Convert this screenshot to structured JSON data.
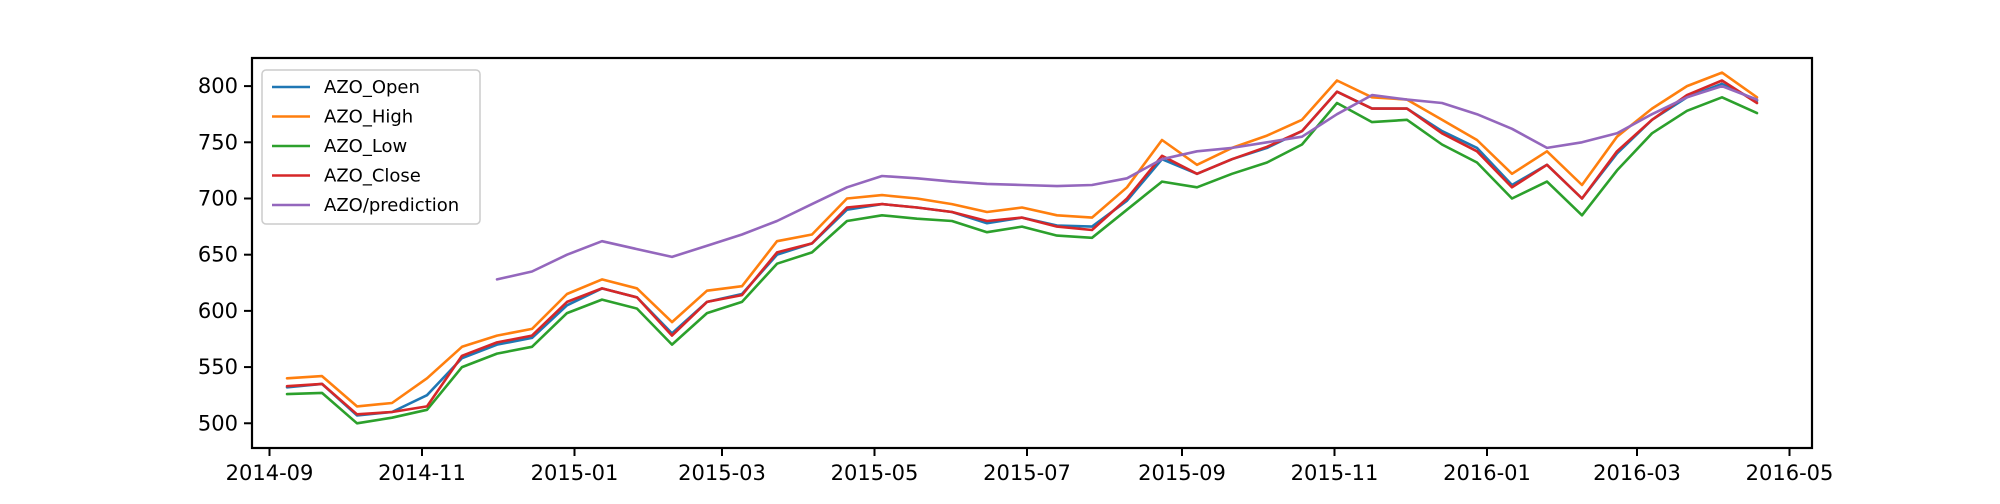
{
  "chart_data": {
    "type": "line",
    "title": "",
    "xlabel": "",
    "ylabel": "",
    "x_range": [
      "2014-08-25",
      "2016-05-10"
    ],
    "ylim": [
      478,
      825
    ],
    "x_ticks": [
      "2014-09",
      "2014-11",
      "2015-01",
      "2015-03",
      "2015-05",
      "2015-07",
      "2015-09",
      "2015-11",
      "2016-01",
      "2016-03",
      "2016-05"
    ],
    "y_ticks": [
      500,
      550,
      600,
      650,
      700,
      750,
      800
    ],
    "grid": false,
    "legend": "top-left",
    "x_dates": [
      "2014-09-08",
      "2014-09-22",
      "2014-10-06",
      "2014-10-20",
      "2014-11-03",
      "2014-11-17",
      "2014-12-01",
      "2014-12-15",
      "2014-12-29",
      "2015-01-12",
      "2015-01-26",
      "2015-02-09",
      "2015-02-23",
      "2015-03-09",
      "2015-03-23",
      "2015-04-06",
      "2015-04-20",
      "2015-05-04",
      "2015-05-18",
      "2015-06-01",
      "2015-06-15",
      "2015-06-29",
      "2015-07-13",
      "2015-07-27",
      "2015-08-10",
      "2015-08-24",
      "2015-09-07",
      "2015-09-21",
      "2015-10-05",
      "2015-10-19",
      "2015-11-02",
      "2015-11-16",
      "2015-11-30",
      "2015-12-14",
      "2015-12-28",
      "2016-01-11",
      "2016-01-25",
      "2016-02-08",
      "2016-02-22",
      "2016-03-07",
      "2016-03-21",
      "2016-04-04",
      "2016-04-18"
    ],
    "series": [
      {
        "name": "AZO_Open",
        "color": "#1f77b4",
        "values": [
          532,
          535,
          507,
          510,
          525,
          558,
          570,
          576,
          605,
          620,
          612,
          580,
          608,
          615,
          650,
          660,
          690,
          695,
          692,
          688,
          678,
          683,
          676,
          675,
          698,
          735,
          722,
          735,
          745,
          760,
          795,
          780,
          780,
          760,
          745,
          712,
          730,
          700,
          740,
          770,
          790,
          802,
          787
        ]
      },
      {
        "name": "AZO_High",
        "color": "#ff7f0e",
        "values": [
          540,
          542,
          515,
          518,
          540,
          568,
          578,
          584,
          615,
          628,
          620,
          590,
          618,
          622,
          662,
          668,
          700,
          703,
          700,
          695,
          688,
          692,
          685,
          683,
          710,
          752,
          730,
          745,
          756,
          770,
          805,
          790,
          788,
          770,
          752,
          722,
          742,
          712,
          755,
          780,
          800,
          812,
          790
        ]
      },
      {
        "name": "AZO_Low",
        "color": "#2ca02c",
        "values": [
          526,
          527,
          500,
          505,
          512,
          550,
          562,
          568,
          598,
          610,
          602,
          570,
          598,
          608,
          642,
          652,
          680,
          685,
          682,
          680,
          670,
          675,
          667,
          665,
          690,
          715,
          710,
          722,
          732,
          748,
          785,
          768,
          770,
          748,
          732,
          700,
          715,
          685,
          725,
          758,
          778,
          790,
          776
        ]
      },
      {
        "name": "AZO_Close",
        "color": "#d62728",
        "values": [
          533,
          535,
          508,
          510,
          515,
          560,
          572,
          578,
          608,
          620,
          612,
          578,
          608,
          614,
          652,
          660,
          692,
          695,
          692,
          688,
          680,
          683,
          675,
          672,
          700,
          738,
          722,
          735,
          746,
          760,
          795,
          780,
          780,
          758,
          742,
          710,
          730,
          700,
          742,
          770,
          792,
          805,
          785
        ]
      },
      {
        "name": "AZO/prediction",
        "color": "#9467bd",
        "values": [
          null,
          null,
          null,
          null,
          null,
          null,
          628,
          635,
          650,
          662,
          655,
          648,
          658,
          668,
          680,
          695,
          710,
          720,
          718,
          715,
          713,
          712,
          711,
          712,
          718,
          735,
          742,
          745,
          750,
          755,
          775,
          792,
          788,
          785,
          775,
          762,
          745,
          750,
          758,
          775,
          790,
          800,
          788
        ]
      }
    ]
  }
}
